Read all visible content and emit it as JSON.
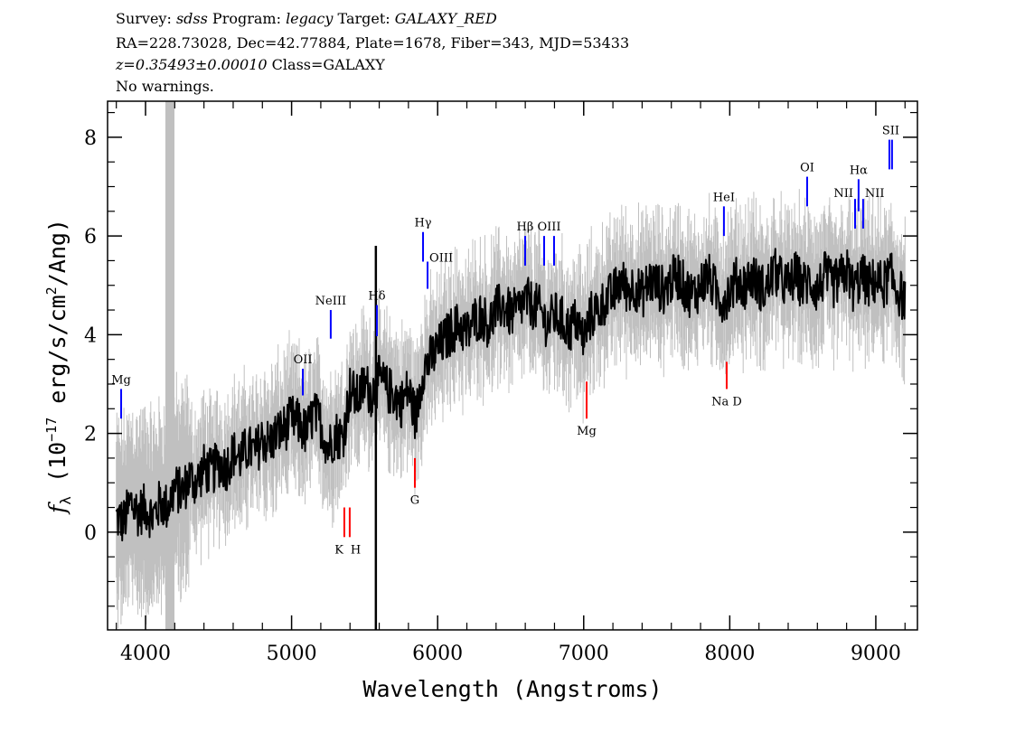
{
  "header": {
    "survey_label": "Survey:",
    "survey": "sdss",
    "program_label": "Program:",
    "program": "legacy",
    "target_label": "Target:",
    "target": "GALAXY_RED",
    "line2": "RA=228.73028, Dec=42.77884, Plate=1678, Fiber=343, MJD=53433",
    "redshift": "z=0.35493±0.00010",
    "class": "Class=GALAXY",
    "warnings": "No warnings."
  },
  "chart_data": {
    "type": "line",
    "xlabel": "Wavelength (Angstroms)",
    "ylabel_prefix": "f",
    "ylabel_sub": "λ",
    "ylabel_main": " (10",
    "ylabel_exp": "−17",
    "ylabel_mid": " erg/s/cm",
    "ylabel_exp2": "2",
    "ylabel_end": "/Ang)",
    "xlim": [
      3740,
      9285
    ],
    "ylim": [
      -1.98,
      8.73
    ],
    "x_ticks": [
      4000,
      5000,
      6000,
      7000,
      8000,
      9000
    ],
    "y_ticks": [
      0,
      2,
      4,
      6,
      8
    ],
    "grid": false,
    "flux_series": {
      "x_start": 3800,
      "x_step": 50,
      "values": [
        0.3,
        0.2,
        0.6,
        0.4,
        0.5,
        0.3,
        0.6,
        0.5,
        0.9,
        0.8,
        1.1,
        1.0,
        1.3,
        1.2,
        1.4,
        1.3,
        1.6,
        1.5,
        1.7,
        1.6,
        1.9,
        1.8,
        2.0,
        2.1,
        2.3,
        2.2,
        2.0,
        2.4,
        2.2,
        1.7,
        2.0,
        1.9,
        2.9,
        2.7,
        3.0,
        2.8,
        3.1,
        2.9,
        2.8,
        2.6,
        2.9,
        2.3,
        3.3,
        3.5,
        3.7,
        3.9,
        4.1,
        4.2,
        4.0,
        4.3,
        4.4,
        4.2,
        4.5,
        4.6,
        4.4,
        4.5,
        4.7,
        4.6,
        4.5,
        4.2,
        4.4,
        4.3,
        4.1,
        4.3,
        3.9,
        4.4,
        4.5,
        4.7,
        4.8,
        5.1,
        4.9,
        5.0,
        4.8,
        5.1,
        5.0,
        4.9,
        5.1,
        5.2,
        4.9,
        4.8,
        5.0,
        5.2,
        4.9,
        4.7,
        4.9,
        5.1,
        5.0,
        5.2,
        5.0,
        4.9,
        5.3,
        5.1,
        5.0,
        5.2,
        5.0,
        5.1,
        4.9,
        5.2,
        5.0,
        5.1,
        5.3,
        4.9,
        5.2,
        5.0,
        5.1,
        5.0,
        5.2,
        4.9,
        4.7
      ]
    },
    "masked_region": [
      4136,
      4198
    ],
    "sky_spike": {
      "x": 5577,
      "y_range": [
        -2.0,
        5.8
      ]
    },
    "line_colors": {
      "emission": "#0000ff",
      "absorption": "#ff0000",
      "flux": "#000000",
      "error": "#c0c0c0"
    },
    "lines": [
      {
        "label": "Mg",
        "x": [
          3833
        ],
        "y": [
          2.3,
          2.9
        ],
        "kind": "emission",
        "label_pos": "above"
      },
      {
        "label": "OII",
        "x": [
          5077
        ],
        "y": [
          2.77,
          3.31
        ],
        "kind": "emission",
        "label_pos": "above"
      },
      {
        "label": "NeIII",
        "x": [
          5268
        ],
        "y": [
          3.92,
          4.5
        ],
        "kind": "emission",
        "label_pos": "above"
      },
      {
        "label": "Hδ",
        "x": [
          5584
        ],
        "y": [
          3.97,
          4.6
        ],
        "kind": "emission",
        "label_pos": "above"
      },
      {
        "label": "Hγ",
        "x": [
          5900
        ],
        "y": [
          5.48,
          6.08
        ],
        "kind": "emission",
        "label_pos": "above"
      },
      {
        "label": "OIII",
        "x": [
          5931
        ],
        "y": [
          4.93,
          5.48
        ],
        "kind": "emission",
        "label_pos": "right"
      },
      {
        "label": "Hβ",
        "x": [
          6599
        ],
        "y": [
          5.4,
          6.0
        ],
        "kind": "emission",
        "label_pos": "above"
      },
      {
        "label": "OIII",
        "x": [
          6729,
          6797
        ],
        "y": [
          5.4,
          6.0
        ],
        "kind": "emission",
        "label_pos": "above"
      },
      {
        "label": "HeI",
        "x": [
          7960
        ],
        "y": [
          6.0,
          6.6
        ],
        "kind": "emission",
        "label_pos": "above"
      },
      {
        "label": "OI",
        "x": [
          8530
        ],
        "y": [
          6.6,
          7.2
        ],
        "kind": "emission",
        "label_pos": "above"
      },
      {
        "label": "NII",
        "x": [
          8858
        ],
        "y": [
          6.15,
          6.75
        ],
        "kind": "emission",
        "label_pos": "left"
      },
      {
        "label": "Hα",
        "x": [
          8882
        ],
        "y": [
          6.5,
          7.15
        ],
        "kind": "emission",
        "label_pos": "above"
      },
      {
        "label": "NII",
        "x": [
          8913
        ],
        "y": [
          6.15,
          6.75
        ],
        "kind": "emission",
        "label_pos": "right"
      },
      {
        "label": "SII",
        "x": [
          9093,
          9111
        ],
        "y": [
          7.35,
          7.95
        ],
        "kind": "emission",
        "label_pos": "above"
      },
      {
        "label": "K",
        "x": [
          5361
        ],
        "y": [
          -0.1,
          0.5
        ],
        "kind": "absorption",
        "label_pos": "below-left"
      },
      {
        "label": "H",
        "x": [
          5398
        ],
        "y": [
          -0.1,
          0.5
        ],
        "kind": "absorption",
        "label_pos": "below-right"
      },
      {
        "label": "G",
        "x": [
          5844
        ],
        "y": [
          0.9,
          1.5
        ],
        "kind": "absorption",
        "label_pos": "below"
      },
      {
        "label": "Mg",
        "x": [
          7020
        ],
        "y": [
          2.3,
          3.05
        ],
        "kind": "absorption",
        "label_pos": "below"
      },
      {
        "label": "Na D",
        "x": [
          7979
        ],
        "y": [
          2.9,
          3.45
        ],
        "kind": "absorption",
        "label_pos": "below"
      }
    ]
  }
}
